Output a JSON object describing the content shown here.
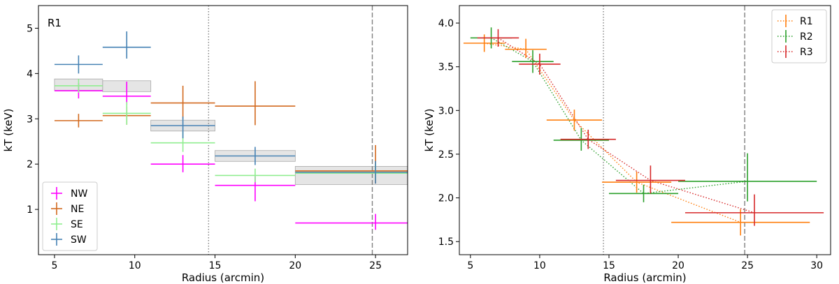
{
  "chart_data": [
    {
      "type": "scatter",
      "panel_label": "R1",
      "xlabel": "Radius (arcmin)",
      "ylabel": "kT (keV)",
      "xlim": [
        4,
        27
      ],
      "ylim": [
        0.0,
        5.5
      ],
      "xticks": [
        5,
        10,
        15,
        20,
        25
      ],
      "yticks": [
        1,
        2,
        3,
        4,
        5
      ],
      "vlines": [
        {
          "x": 14.6,
          "style": "dotted",
          "color": "#808080"
        },
        {
          "x": 24.8,
          "style": "dashed",
          "color": "#808080"
        }
      ],
      "bands": [
        {
          "x": [
            5,
            8
          ],
          "y": [
            3.63,
            3.88
          ]
        },
        {
          "x": [
            8,
            11
          ],
          "y": [
            3.6,
            3.84
          ]
        },
        {
          "x": [
            11,
            15
          ],
          "y": [
            2.73,
            2.97
          ]
        },
        {
          "x": [
            15,
            20
          ],
          "y": [
            2.06,
            2.3
          ]
        },
        {
          "x": [
            20,
            27
          ],
          "y": [
            1.55,
            1.95
          ]
        }
      ],
      "legend": {
        "position": "lower-left"
      },
      "series": [
        {
          "name": "NW",
          "color": "#ff00ff",
          "points": [
            {
              "x": 6.5,
              "xerr": 1.5,
              "y": 3.62,
              "yerr": [
                0.17,
                0.17
              ]
            },
            {
              "x": 9.5,
              "xerr": 1.5,
              "y": 3.5,
              "yerr": [
                0.2,
                0.32
              ]
            },
            {
              "x": 13,
              "xerr": 2.0,
              "y": 2.0,
              "yerr": [
                0.18,
                0.2
              ]
            },
            {
              "x": 17.5,
              "xerr": 2.5,
              "y": 1.53,
              "yerr": [
                0.35,
                0.2
              ]
            },
            {
              "x": 25,
              "xerr": 5.0,
              "y": 0.7,
              "yerr": [
                0.15,
                0.2
              ]
            }
          ]
        },
        {
          "name": "NE",
          "color": "#d2691e",
          "points": [
            {
              "x": 6.5,
              "xerr": 1.5,
              "y": 2.96,
              "yerr": [
                0.15,
                0.15
              ]
            },
            {
              "x": 9.5,
              "xerr": 1.5,
              "y": 3.07,
              "yerr": [
                0.2,
                0.2
              ]
            },
            {
              "x": 13,
              "xerr": 2.0,
              "y": 3.35,
              "yerr": [
                0.35,
                0.38
              ]
            },
            {
              "x": 17.5,
              "xerr": 2.5,
              "y": 3.28,
              "yerr": [
                0.42,
                0.55
              ]
            },
            {
              "x": 25,
              "xerr": 5.0,
              "y": 1.85,
              "yerr": [
                0.28,
                0.57
              ]
            }
          ]
        },
        {
          "name": "SE",
          "color": "#90ee90",
          "points": [
            {
              "x": 6.5,
              "xerr": 1.5,
              "y": 3.73,
              "yerr": [
                0.15,
                0.15
              ]
            },
            {
              "x": 9.5,
              "xerr": 1.5,
              "y": 3.12,
              "yerr": [
                0.25,
                0.25
              ]
            },
            {
              "x": 13,
              "xerr": 2.0,
              "y": 2.47,
              "yerr": [
                0.2,
                0.25
              ]
            },
            {
              "x": 17.5,
              "xerr": 2.5,
              "y": 1.75,
              "yerr": [
                0.15,
                0.15
              ]
            },
            {
              "x": 25,
              "xerr": 5.0,
              "y": 1.8,
              "yerr": [
                0.15,
                0.2
              ]
            }
          ]
        },
        {
          "name": "SW",
          "color": "#4682b4",
          "points": [
            {
              "x": 6.5,
              "xerr": 1.5,
              "y": 4.2,
              "yerr": [
                0.2,
                0.2
              ]
            },
            {
              "x": 9.5,
              "xerr": 1.5,
              "y": 4.58,
              "yerr": [
                0.25,
                0.35
              ]
            },
            {
              "x": 13,
              "xerr": 2.0,
              "y": 2.85,
              "yerr": [
                0.28,
                0.2
              ]
            },
            {
              "x": 17.5,
              "xerr": 2.5,
              "y": 2.18,
              "yerr": [
                0.2,
                0.2
              ]
            },
            {
              "x": 25,
              "xerr": 5.0,
              "y": 1.82,
              "yerr": [
                0.25,
                0.25
              ]
            }
          ]
        }
      ]
    },
    {
      "type": "line",
      "xlabel": "Radius (arcmin)",
      "ylabel": "kT (keV)",
      "xlim": [
        4.2,
        31
      ],
      "ylim": [
        1.35,
        4.2
      ],
      "xticks": [
        5,
        10,
        15,
        20,
        25,
        30
      ],
      "yticks": [
        1.5,
        2.0,
        2.5,
        3.0,
        3.5,
        4.0
      ],
      "ytick_labels": [
        "1.5",
        "2.0",
        "2.5",
        "3.0",
        "3.5",
        "4.0"
      ],
      "vlines": [
        {
          "x": 14.6,
          "style": "dotted",
          "color": "#808080"
        },
        {
          "x": 24.8,
          "style": "dashed",
          "color": "#808080"
        }
      ],
      "legend": {
        "position": "top-right"
      },
      "line_style": "dotted",
      "series": [
        {
          "name": "R1",
          "color": "#ff7f0e",
          "points": [
            {
              "x": 6.0,
              "xerr": 1.5,
              "y": 3.77,
              "yerr": [
                0.1,
                0.1
              ]
            },
            {
              "x": 9.0,
              "xerr": 1.5,
              "y": 3.7,
              "yerr": [
                0.1,
                0.12
              ]
            },
            {
              "x": 12.5,
              "xerr": 2.0,
              "y": 2.89,
              "yerr": [
                0.12,
                0.12
              ]
            },
            {
              "x": 17.0,
              "xerr": 2.5,
              "y": 2.18,
              "yerr": [
                0.12,
                0.12
              ]
            },
            {
              "x": 24.5,
              "xerr": 5.0,
              "y": 1.72,
              "yerr": [
                0.15,
                0.15
              ]
            }
          ]
        },
        {
          "name": "R2",
          "color": "#2ca02c",
          "points": [
            {
              "x": 6.5,
              "xerr": 1.5,
              "y": 3.83,
              "yerr": [
                0.12,
                0.12
              ]
            },
            {
              "x": 9.5,
              "xerr": 1.5,
              "y": 3.56,
              "yerr": [
                0.13,
                0.13
              ]
            },
            {
              "x": 13.0,
              "xerr": 2.0,
              "y": 2.66,
              "yerr": [
                0.12,
                0.14
              ]
            },
            {
              "x": 17.5,
              "xerr": 2.5,
              "y": 2.05,
              "yerr": [
                0.1,
                0.1
              ]
            },
            {
              "x": 25.0,
              "xerr": 5.0,
              "y": 2.19,
              "yerr": [
                0.23,
                0.32
              ]
            }
          ]
        },
        {
          "name": "R3",
          "color": "#d62728",
          "points": [
            {
              "x": 7.0,
              "xerr": 1.5,
              "y": 3.83,
              "yerr": [
                0.1,
                0.1
              ]
            },
            {
              "x": 10.0,
              "xerr": 1.5,
              "y": 3.53,
              "yerr": [
                0.12,
                0.12
              ]
            },
            {
              "x": 13.5,
              "xerr": 2.0,
              "y": 2.67,
              "yerr": [
                0.11,
                0.11
              ]
            },
            {
              "x": 18.0,
              "xerr": 2.5,
              "y": 2.2,
              "yerr": [
                0.15,
                0.17
              ]
            },
            {
              "x": 25.5,
              "xerr": 5.0,
              "y": 1.83,
              "yerr": [
                0.15,
                0.21
              ]
            }
          ]
        }
      ]
    }
  ]
}
